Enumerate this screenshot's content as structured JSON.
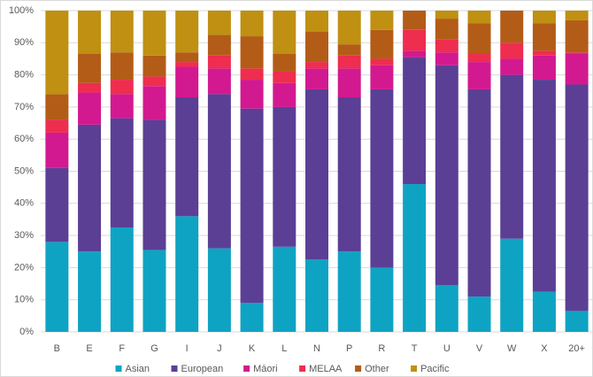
{
  "chart_data": {
    "type": "stacked-bar",
    "categories": [
      "B",
      "E",
      "F",
      "G",
      "I",
      "J",
      "K",
      "L",
      "N",
      "P",
      "R",
      "T",
      "U",
      "V",
      "W",
      "X",
      "20+"
    ],
    "series": [
      {
        "name": "Asian",
        "color": "#0fa3c3",
        "values": [
          28,
          25,
          32.5,
          25.5,
          36,
          26,
          9,
          26.5,
          22.5,
          25,
          20,
          46,
          14.5,
          11,
          29,
          12.5,
          6.5
        ]
      },
      {
        "name": "European",
        "color": "#5b3f95",
        "values": [
          23,
          39.5,
          34,
          40.5,
          37,
          48,
          60.5,
          43.5,
          53,
          48,
          55.5,
          39.5,
          68.5,
          64.5,
          51,
          66,
          70.5
        ]
      },
      {
        "name": "Māori",
        "color": "#d3198f",
        "values": [
          11,
          10,
          7.5,
          10.5,
          9.5,
          8,
          9,
          7.5,
          6.5,
          9,
          7.5,
          2,
          4,
          8.5,
          5,
          7.5,
          9.5
        ]
      },
      {
        "name": "MELAA",
        "color": "#ee2d4f",
        "values": [
          4,
          3,
          4.5,
          3,
          1.5,
          4,
          3.5,
          3.5,
          2,
          4,
          2,
          6.5,
          4,
          2.5,
          5,
          1.5,
          0.5
        ]
      },
      {
        "name": "Other",
        "color": "#b35c17",
        "values": [
          8,
          9,
          8.5,
          6.5,
          3,
          6.5,
          10,
          5.5,
          9.5,
          3.5,
          9,
          6,
          6.5,
          9.5,
          10,
          8.5,
          10
        ]
      },
      {
        "name": "Pacific",
        "color": "#bf9011",
        "values": [
          26,
          13.5,
          13,
          14,
          13,
          7.5,
          8,
          13.5,
          6.5,
          10.5,
          6,
          0,
          2.5,
          4,
          0,
          4,
          3
        ]
      }
    ],
    "ylim": [
      0,
      100
    ],
    "yticks": [
      {
        "value": 0,
        "label": "0%"
      },
      {
        "value": 10,
        "label": "10%"
      },
      {
        "value": 20,
        "label": "20%"
      },
      {
        "value": 30,
        "label": "30%"
      },
      {
        "value": 40,
        "label": "40%"
      },
      {
        "value": 50,
        "label": "50%"
      },
      {
        "value": 60,
        "label": "60%"
      },
      {
        "value": 70,
        "label": "70%"
      },
      {
        "value": 80,
        "label": "80%"
      },
      {
        "value": 90,
        "label": "90%"
      },
      {
        "value": 100,
        "label": "100%"
      }
    ],
    "grid": true
  }
}
